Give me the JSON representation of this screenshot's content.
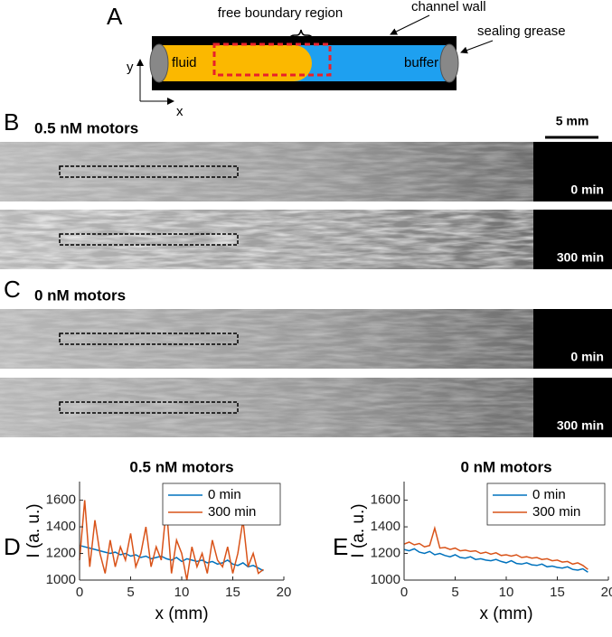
{
  "panel_labels": [
    "A",
    "B",
    "C",
    "D",
    "E"
  ],
  "schematic": {
    "free_boundary": "free boundary region",
    "channel_wall": "channel wall",
    "sealing_grease": "sealing grease",
    "fluid": "fluid",
    "buffer": "buffer",
    "axis_y": "y",
    "axis_x": "x"
  },
  "images": {
    "scale_bar": "5 mm",
    "groups": [
      {
        "title": "0.5 nM motors",
        "frames": [
          "0 min",
          "300 min"
        ]
      },
      {
        "title": "0 nM motors",
        "frames": [
          "0 min",
          "300 min"
        ]
      }
    ]
  },
  "chart_data": [
    {
      "type": "line",
      "title": "0.5 nM motors",
      "xlabel": "x (mm)",
      "ylabel": "I (a. u.)",
      "xlim": [
        0,
        20
      ],
      "xticks": [
        0,
        5,
        10,
        15,
        20
      ],
      "ylim": [
        1000,
        1740
      ],
      "yticks": [
        1000,
        1200,
        1400,
        1600
      ],
      "legend": "upper right",
      "x": [
        0,
        0.5,
        1,
        1.5,
        2,
        2.5,
        3,
        3.5,
        4,
        4.5,
        5,
        5.5,
        6,
        6.5,
        7,
        7.5,
        8,
        8.5,
        9,
        9.5,
        10,
        10.5,
        11,
        11.5,
        12,
        12.5,
        13,
        13.5,
        14,
        14.5,
        15,
        15.5,
        16,
        16.5,
        17,
        17.5,
        18
      ],
      "series": [
        {
          "name": "0 min",
          "color": "#0072bd",
          "values": [
            1260,
            1250,
            1240,
            1230,
            1220,
            1210,
            1200,
            1210,
            1190,
            1200,
            1180,
            1190,
            1170,
            1180,
            1160,
            1170,
            1180,
            1160,
            1150,
            1170,
            1140,
            1160,
            1150,
            1140,
            1150,
            1130,
            1140,
            1120,
            1130,
            1150,
            1120,
            1110,
            1130,
            1100,
            1110,
            1090,
            1070
          ]
        },
        {
          "name": "300 min",
          "color": "#d95319",
          "values": [
            1150,
            1600,
            1100,
            1450,
            1200,
            1050,
            1300,
            1100,
            1250,
            1150,
            1350,
            1100,
            1200,
            1400,
            1100,
            1250,
            1150,
            1550,
            1050,
            1300,
            1200,
            1000,
            1250,
            1100,
            1200,
            1050,
            1300,
            1150,
            1100,
            1250,
            1050,
            1200,
            1450,
            1100,
            1200,
            1050,
            1080
          ]
        }
      ]
    },
    {
      "type": "line",
      "title": "0 nM motors",
      "xlabel": "x (mm)",
      "ylabel": "I (a. u.)",
      "xlim": [
        0,
        20
      ],
      "xticks": [
        0,
        5,
        10,
        15,
        20
      ],
      "ylim": [
        1000,
        1740
      ],
      "yticks": [
        1000,
        1200,
        1400,
        1600
      ],
      "legend": "upper right",
      "x": [
        0,
        0.5,
        1,
        1.5,
        2,
        2.5,
        3,
        3.5,
        4,
        4.5,
        5,
        5.5,
        6,
        6.5,
        7,
        7.5,
        8,
        8.5,
        9,
        9.5,
        10,
        10.5,
        11,
        11.5,
        12,
        12.5,
        13,
        13.5,
        14,
        14.5,
        15,
        15.5,
        16,
        16.5,
        17,
        17.5,
        18
      ],
      "series": [
        {
          "name": "0 min",
          "color": "#0072bd",
          "values": [
            1230,
            1220,
            1235,
            1210,
            1200,
            1215,
            1190,
            1200,
            1185,
            1175,
            1190,
            1170,
            1165,
            1175,
            1155,
            1160,
            1150,
            1145,
            1155,
            1140,
            1130,
            1145,
            1125,
            1120,
            1130,
            1115,
            1110,
            1120,
            1100,
            1105,
            1095,
            1090,
            1100,
            1080,
            1075,
            1085,
            1060
          ]
        },
        {
          "name": "300 min",
          "color": "#d95319",
          "values": [
            1270,
            1285,
            1265,
            1275,
            1250,
            1260,
            1390,
            1240,
            1245,
            1230,
            1240,
            1220,
            1225,
            1215,
            1220,
            1200,
            1210,
            1195,
            1205,
            1185,
            1190,
            1180,
            1190,
            1170,
            1175,
            1165,
            1170,
            1155,
            1160,
            1145,
            1150,
            1135,
            1140,
            1120,
            1130,
            1110,
            1080
          ]
        }
      ]
    }
  ]
}
